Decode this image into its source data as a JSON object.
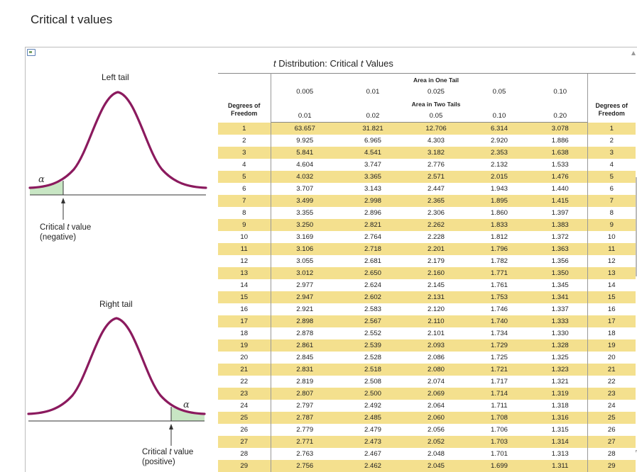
{
  "page_title": "Critical t values",
  "figure": {
    "left_tail_label": "Left tail",
    "right_tail_label": "Right tail",
    "alpha_symbol": "α",
    "left_crit_prefix": "Critical ",
    "left_crit_t": "t",
    "left_crit_suffix": " value",
    "left_crit_sign": "(negative)",
    "right_crit_prefix": "Critical ",
    "right_crit_t": "t",
    "right_crit_suffix": " value",
    "right_crit_sign": "(positive)",
    "shade_color": "#c8e6c4",
    "curve_color": "#8b1a5e"
  },
  "table": {
    "title_italic": "t",
    "title_pre": "",
    "title_mid": " Distribution: Critical ",
    "title_italic2": "t",
    "title_post": " Values",
    "one_tail_label": "Area in One Tail",
    "two_tail_label": "Area in Two Tails",
    "df_label_line1": "Degrees of",
    "df_label_line2": "Freedom",
    "one_tail": [
      "0.005",
      "0.01",
      "0.025",
      "0.05",
      "0.10"
    ],
    "two_tails": [
      "0.01",
      "0.02",
      "0.05",
      "0.10",
      "0.20"
    ],
    "stripe_color": "#f4e08e",
    "rows": [
      [
        "1",
        "63.657",
        "31.821",
        "12.706",
        "6.314",
        "3.078"
      ],
      [
        "2",
        "9.925",
        "6.965",
        "4.303",
        "2.920",
        "1.886"
      ],
      [
        "3",
        "5.841",
        "4.541",
        "3.182",
        "2.353",
        "1.638"
      ],
      [
        "4",
        "4.604",
        "3.747",
        "2.776",
        "2.132",
        "1.533"
      ],
      [
        "5",
        "4.032",
        "3.365",
        "2.571",
        "2.015",
        "1.476"
      ],
      [
        "6",
        "3.707",
        "3.143",
        "2.447",
        "1.943",
        "1.440"
      ],
      [
        "7",
        "3.499",
        "2.998",
        "2.365",
        "1.895",
        "1.415"
      ],
      [
        "8",
        "3.355",
        "2.896",
        "2.306",
        "1.860",
        "1.397"
      ],
      [
        "9",
        "3.250",
        "2.821",
        "2.262",
        "1.833",
        "1.383"
      ],
      [
        "10",
        "3.169",
        "2.764",
        "2.228",
        "1.812",
        "1.372"
      ],
      [
        "11",
        "3.106",
        "2.718",
        "2.201",
        "1.796",
        "1.363"
      ],
      [
        "12",
        "3.055",
        "2.681",
        "2.179",
        "1.782",
        "1.356"
      ],
      [
        "13",
        "3.012",
        "2.650",
        "2.160",
        "1.771",
        "1.350"
      ],
      [
        "14",
        "2.977",
        "2.624",
        "2.145",
        "1.761",
        "1.345"
      ],
      [
        "15",
        "2.947",
        "2.602",
        "2.131",
        "1.753",
        "1.341"
      ],
      [
        "16",
        "2.921",
        "2.583",
        "2.120",
        "1.746",
        "1.337"
      ],
      [
        "17",
        "2.898",
        "2.567",
        "2.110",
        "1.740",
        "1.333"
      ],
      [
        "18",
        "2.878",
        "2.552",
        "2.101",
        "1.734",
        "1.330"
      ],
      [
        "19",
        "2.861",
        "2.539",
        "2.093",
        "1.729",
        "1.328"
      ],
      [
        "20",
        "2.845",
        "2.528",
        "2.086",
        "1.725",
        "1.325"
      ],
      [
        "21",
        "2.831",
        "2.518",
        "2.080",
        "1.721",
        "1.323"
      ],
      [
        "22",
        "2.819",
        "2.508",
        "2.074",
        "1.717",
        "1.321"
      ],
      [
        "23",
        "2.807",
        "2.500",
        "2.069",
        "1.714",
        "1.319"
      ],
      [
        "24",
        "2.797",
        "2.492",
        "2.064",
        "1.711",
        "1.318"
      ],
      [
        "25",
        "2.787",
        "2.485",
        "2.060",
        "1.708",
        "1.316"
      ],
      [
        "26",
        "2.779",
        "2.479",
        "2.056",
        "1.706",
        "1.315"
      ],
      [
        "27",
        "2.771",
        "2.473",
        "2.052",
        "1.703",
        "1.314"
      ],
      [
        "28",
        "2.763",
        "2.467",
        "2.048",
        "1.701",
        "1.313"
      ],
      [
        "29",
        "2.756",
        "2.462",
        "2.045",
        "1.699",
        "1.311"
      ]
    ]
  }
}
